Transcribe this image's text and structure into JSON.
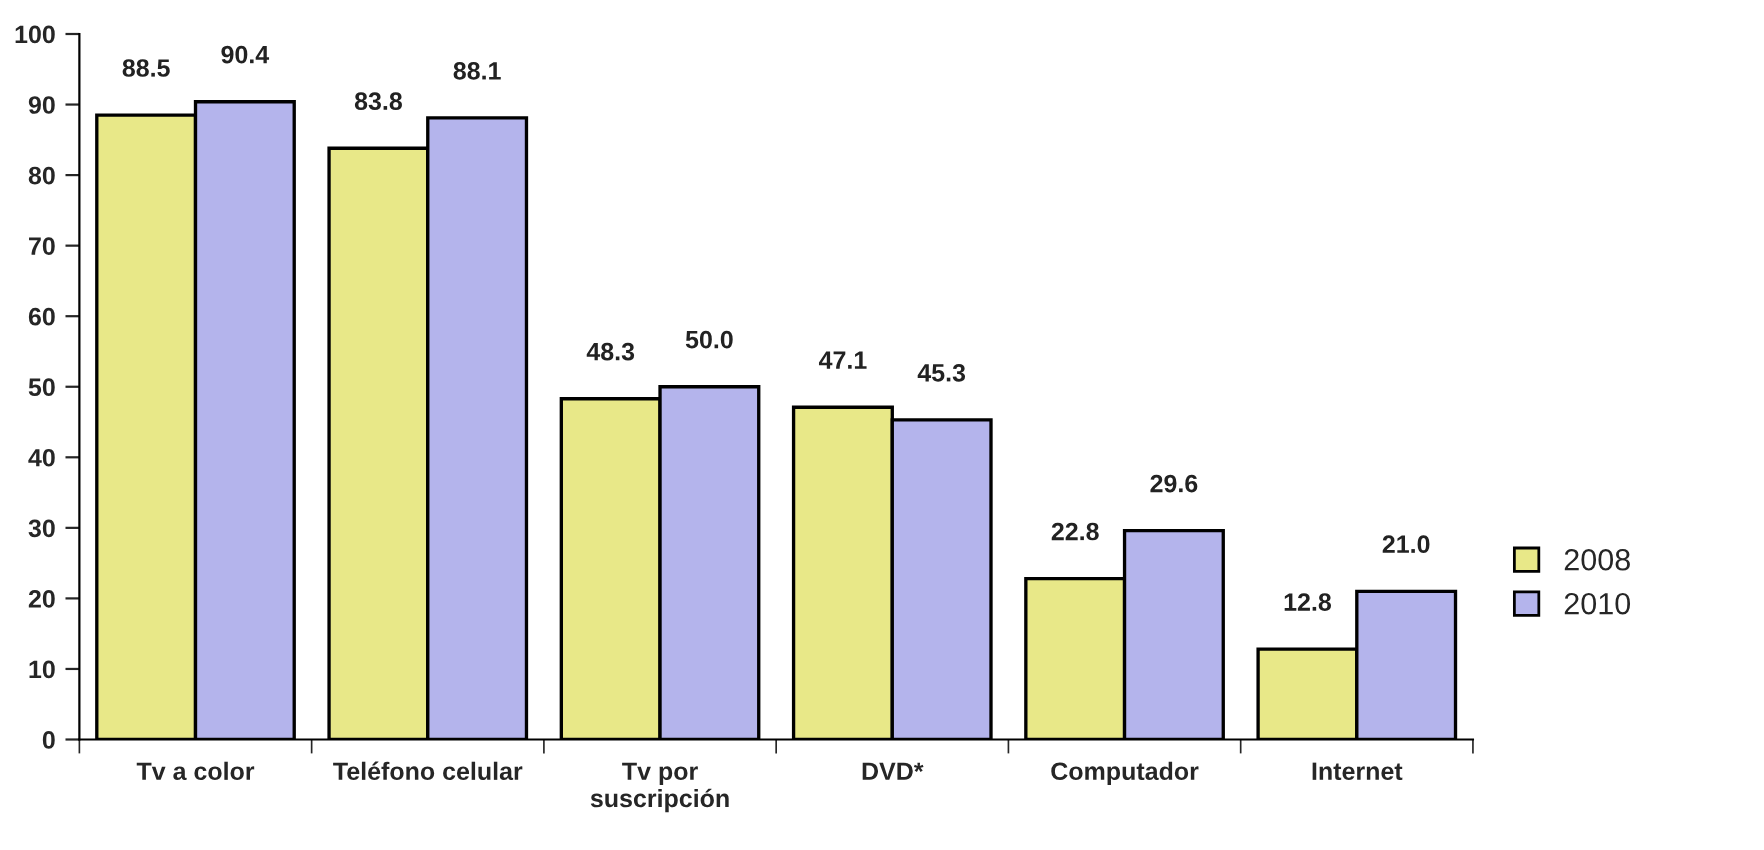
{
  "chart_data": {
    "type": "bar",
    "categories": [
      "Tv a color",
      "Teléfono celular",
      "Tv por\nsuscripción",
      "DVD*",
      "Computador",
      "Internet"
    ],
    "series": [
      {
        "name": "2008",
        "color": "#e8e888",
        "values": [
          88.5,
          83.8,
          48.3,
          47.1,
          22.8,
          12.8
        ],
        "value_labels": [
          "88.5",
          "83.8",
          "48.3",
          "47.1",
          "22.8",
          "12.8"
        ]
      },
      {
        "name": "2010",
        "color": "#b4b4ec",
        "values": [
          90.4,
          88.1,
          50.0,
          45.3,
          29.6,
          21.0
        ],
        "value_labels": [
          "90.4",
          "88.1",
          "50.0",
          "45.3",
          "29.6",
          "21.0"
        ]
      }
    ],
    "ylim": [
      0,
      100
    ],
    "yticks": [
      0,
      10,
      20,
      30,
      40,
      50,
      60,
      70,
      80,
      90,
      100
    ],
    "grid": false,
    "legend": "right"
  }
}
